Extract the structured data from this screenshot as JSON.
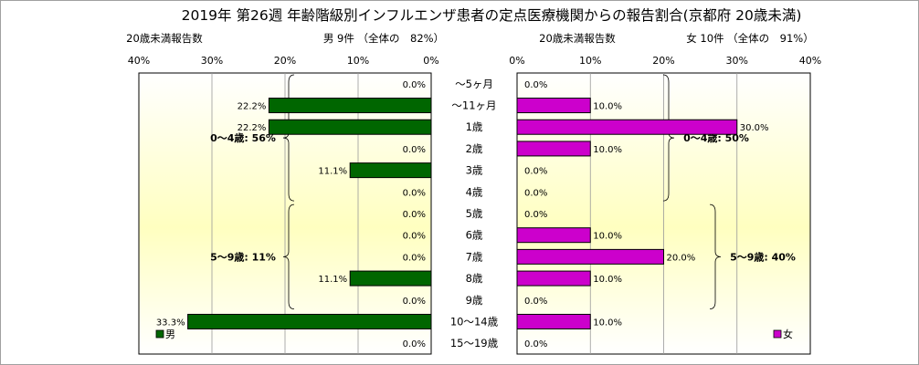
{
  "chart_data": {
    "type": "bar",
    "title": "2019年 第26週 年齢階級別インフルエンザ患者の定点医療機関からの報告割合(京都府 20歳未満)",
    "categories": [
      "～5ヶ月",
      "～11ヶ月",
      "1歳",
      "2歳",
      "3歳",
      "4歳",
      "5歳",
      "6歳",
      "7歳",
      "8歳",
      "9歳",
      "10～14歳",
      "15～19歳"
    ],
    "x_ticks": [
      "40%",
      "30%",
      "20%",
      "10%",
      "0%"
    ],
    "x_ticks_right": [
      "0%",
      "10%",
      "20%",
      "30%",
      "40%"
    ],
    "xlim": [
      0,
      40
    ],
    "grid": true,
    "male": {
      "count_label": "20歳未満報告数",
      "header": "男 9件 （全体の　82%）",
      "legend": "男",
      "legend_placement": "bottom-left",
      "color": "#006600",
      "values": [
        0.0,
        22.2,
        22.2,
        0.0,
        11.1,
        0.0,
        0.0,
        0.0,
        0.0,
        11.1,
        0.0,
        33.3,
        0.0
      ],
      "value_labels": [
        "0.0%",
        "22.2%",
        "22.2%",
        "0.0%",
        "11.1%",
        "0.0%",
        "0.0%",
        "0.0%",
        "0.0%",
        "11.1%",
        "0.0%",
        "33.3%",
        "0.0%"
      ],
      "groups": [
        {
          "label": "0～4歳: 56%",
          "from": 0,
          "to": 5
        },
        {
          "label": "5～9歳: 11%",
          "from": 6,
          "to": 10
        }
      ]
    },
    "female": {
      "count_label": "20歳未満報告数",
      "header": "女 10件 （全体の　91%）",
      "legend": "女",
      "legend_placement": "bottom-right",
      "color": "#cc00cc",
      "values": [
        0.0,
        10.0,
        30.0,
        10.0,
        0.0,
        0.0,
        0.0,
        10.0,
        20.0,
        10.0,
        0.0,
        10.0,
        0.0
      ],
      "value_labels": [
        "0.0%",
        "10.0%",
        "30.0%",
        "10.0%",
        "0.0%",
        "0.0%",
        "0.0%",
        "10.0%",
        "20.0%",
        "10.0%",
        "0.0%",
        "10.0%",
        "0.0%"
      ],
      "groups": [
        {
          "label": "0～4歳: 50%",
          "from": 0,
          "to": 5
        },
        {
          "label": "5～9歳: 40%",
          "from": 6,
          "to": 10
        }
      ]
    }
  }
}
